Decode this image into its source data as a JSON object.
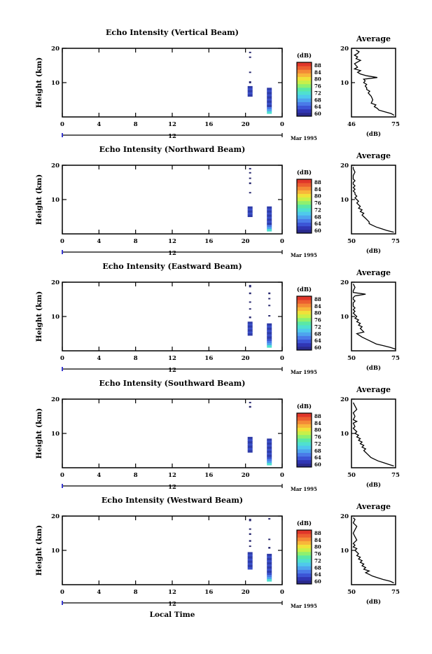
{
  "chart_data": [
    {
      "type": "heatmap",
      "title": "Echo Intensity (Vertical Beam)",
      "ylabel": "Height (km)",
      "x_ticks": [
        "0",
        "4",
        "8",
        "12",
        "16",
        "20",
        "0"
      ],
      "xlim": [
        0,
        24
      ],
      "ylim": [
        0,
        20
      ],
      "y_ticks": [
        "20",
        "10"
      ],
      "date_tick": "12",
      "date_label": "Mar 1995",
      "colorbar": {
        "unit": "(dB)",
        "ticks": [
          "88",
          "84",
          "80",
          "76",
          "72",
          "68",
          "64",
          "60"
        ],
        "range": [
          60,
          88
        ]
      },
      "echo_columns": [
        {
          "hour": 20.5,
          "segments": [
            [
              6,
              9
            ],
            [
              9.8,
              10.4
            ],
            [
              12.8,
              13.2
            ],
            [
              17.2,
              17.6
            ],
            [
              18.6,
              19.0
            ]
          ]
        },
        {
          "hour": 22.6,
          "segments": [
            [
              1,
              8.5
            ]
          ]
        }
      ],
      "average_profile": {
        "title": "Average",
        "xlabel": "(dB)",
        "x_ticks": [
          "46",
          "75"
        ],
        "xlim": [
          46,
          75
        ],
        "y_ticks": [
          "20",
          "10"
        ],
        "x": [
          74,
          72,
          68,
          64,
          63,
          61,
          62,
          59,
          60,
          59,
          58,
          57,
          58,
          56,
          56,
          55,
          56,
          54,
          55,
          54,
          63,
          56,
          52,
          50,
          52,
          48,
          50,
          49,
          48,
          50,
          52,
          49,
          50,
          48,
          50,
          51,
          49
        ],
        "y": [
          0.5,
          1,
          1.5,
          2,
          2.5,
          3,
          3.5,
          4,
          5,
          6,
          6.5,
          7,
          7.5,
          8,
          8.5,
          9,
          9.5,
          10,
          10.5,
          11,
          11.5,
          12,
          12.5,
          13,
          13.5,
          14,
          14.5,
          15,
          15.5,
          16,
          16.5,
          17,
          17.5,
          18,
          18.5,
          19,
          19.5
        ]
      }
    },
    {
      "type": "heatmap",
      "title": "Echo Intensity (Northward Beam)",
      "ylabel": "Height (km)",
      "x_ticks": [
        "0",
        "4",
        "8",
        "12",
        "16",
        "20",
        "0"
      ],
      "xlim": [
        0,
        24
      ],
      "ylim": [
        0,
        20
      ],
      "y_ticks": [
        "20",
        "10"
      ],
      "date_tick": "12",
      "date_label": "Mar 1995",
      "colorbar": {
        "unit": "(dB)",
        "ticks": [
          "88",
          "84",
          "80",
          "76",
          "72",
          "68",
          "64",
          "60"
        ],
        "range": [
          60,
          88
        ]
      },
      "echo_columns": [
        {
          "hour": 20.5,
          "segments": [
            [
              5,
              8
            ],
            [
              11.8,
              12.2
            ],
            [
              14.5,
              15
            ],
            [
              16,
              16.4
            ],
            [
              17.6,
              18
            ],
            [
              18.8,
              19.2
            ]
          ]
        },
        {
          "hour": 22.6,
          "segments": [
            [
              0.8,
              8
            ]
          ]
        }
      ],
      "average_profile": {
        "title": "Average",
        "xlabel": "(dB)",
        "x_ticks": [
          "50",
          "75"
        ],
        "xlim": [
          50,
          75
        ],
        "y_ticks": [
          "20",
          "10"
        ],
        "x": [
          74,
          70,
          67,
          64,
          62,
          60,
          60,
          59,
          58,
          57,
          56,
          57,
          55,
          56,
          54,
          55,
          54,
          53,
          54,
          53,
          52,
          53,
          52,
          52,
          51,
          52,
          51,
          52,
          51,
          51,
          52,
          51,
          51,
          52,
          51,
          51
        ],
        "y": [
          0.5,
          1,
          1.5,
          2,
          2.5,
          3,
          3.5,
          4,
          4.5,
          5,
          5.5,
          6,
          6.5,
          7,
          7.5,
          8,
          8.5,
          9,
          9.5,
          10,
          10.5,
          11,
          11.5,
          12,
          12.5,
          13,
          13.5,
          14,
          14.5,
          15,
          15.5,
          16,
          17,
          18,
          19,
          19.5
        ]
      }
    },
    {
      "type": "heatmap",
      "title": "Echo Intensity (Eastward Beam)",
      "ylabel": "Height (km)",
      "x_ticks": [
        "0",
        "4",
        "8",
        "12",
        "16",
        "20",
        "0"
      ],
      "xlim": [
        0,
        24
      ],
      "ylim": [
        0,
        20
      ],
      "y_ticks": [
        "20",
        "10"
      ],
      "date_tick": "12",
      "date_label": "Mar 1995",
      "colorbar": {
        "unit": "(dB)",
        "ticks": [
          "88",
          "84",
          "80",
          "76",
          "72",
          "68",
          "64",
          "60"
        ],
        "range": [
          60,
          88
        ]
      },
      "echo_columns": [
        {
          "hour": 20.5,
          "segments": [
            [
              4.5,
              8.5
            ],
            [
              9.5,
              10
            ],
            [
              12,
              12.4
            ],
            [
              14,
              14.4
            ],
            [
              16.5,
              17
            ],
            [
              18.5,
              19.2
            ]
          ]
        },
        {
          "hour": 22.6,
          "segments": [
            [
              1,
              8
            ],
            [
              10,
              10.4
            ],
            [
              13,
              13.4
            ],
            [
              15,
              15.4
            ],
            [
              16.5,
              17
            ]
          ]
        }
      ],
      "average_profile": {
        "title": "Average",
        "xlabel": "(dB)",
        "x_ticks": [
          "50",
          "75"
        ],
        "xlim": [
          50,
          75
        ],
        "y_ticks": [
          "20",
          "10"
        ],
        "x": [
          75,
          72,
          68,
          64,
          60,
          56,
          53,
          57,
          56,
          55,
          56,
          54,
          55,
          53,
          54,
          52,
          53,
          52,
          51,
          52,
          51,
          52,
          51,
          51,
          52,
          51,
          51,
          52,
          58,
          51,
          51,
          52,
          51
        ],
        "y": [
          0.5,
          1,
          1.5,
          2,
          3,
          4,
          5,
          5.5,
          6,
          6.5,
          7,
          7.5,
          8,
          8.5,
          9,
          9.5,
          10,
          10.5,
          11,
          11.5,
          12,
          12.5,
          13,
          14,
          14.5,
          15,
          15.5,
          16,
          16.5,
          17,
          17.5,
          18.5,
          19.5
        ]
      }
    },
    {
      "type": "heatmap",
      "title": "Echo Intensity (Southward Beam)",
      "ylabel": "Height (km)",
      "x_ticks": [
        "0",
        "4",
        "8",
        "12",
        "16",
        "20",
        "0"
      ],
      "xlim": [
        0,
        24
      ],
      "ylim": [
        0,
        20
      ],
      "y_ticks": [
        "20",
        "10"
      ],
      "date_tick": "12",
      "date_label": "Mar 1995",
      "colorbar": {
        "unit": "(dB)",
        "ticks": [
          "88",
          "84",
          "80",
          "76",
          "72",
          "68",
          "64",
          "60"
        ],
        "range": [
          60,
          88
        ]
      },
      "echo_columns": [
        {
          "hour": 20.5,
          "segments": [
            [
              4.5,
              9
            ],
            [
              17.5,
              18
            ],
            [
              18.8,
              19.2
            ]
          ]
        },
        {
          "hour": 22.6,
          "segments": [
            [
              0.8,
              8.5
            ]
          ]
        }
      ],
      "average_profile": {
        "title": "Average",
        "xlabel": "(dB)",
        "x_ticks": [
          "50",
          "75"
        ],
        "xlim": [
          50,
          75
        ],
        "y_ticks": [
          "20",
          "10"
        ],
        "x": [
          74,
          71,
          68,
          65,
          63,
          61,
          60,
          59,
          58,
          57,
          58,
          56,
          57,
          55,
          56,
          54,
          55,
          53,
          54,
          52,
          53,
          52,
          51,
          52,
          51,
          53,
          51,
          52,
          51,
          53,
          52,
          51
        ],
        "y": [
          0.5,
          1,
          1.5,
          2,
          2.5,
          3,
          3.5,
          4,
          4.5,
          5,
          5.5,
          6,
          6.5,
          7,
          7.5,
          8,
          8.5,
          9,
          9.5,
          10,
          10.5,
          11,
          11.5,
          12,
          13,
          13.5,
          14,
          15,
          16,
          17,
          18,
          19
        ]
      }
    },
    {
      "type": "heatmap",
      "title": "Echo Intensity (Westward Beam)",
      "ylabel": "Height (km)",
      "x_ticks": [
        "0",
        "4",
        "8",
        "12",
        "16",
        "20",
        "0"
      ],
      "xlim": [
        0,
        24
      ],
      "ylim": [
        0,
        20
      ],
      "y_ticks": [
        "20",
        "10"
      ],
      "date_tick": "12",
      "date_label": "Mar 1995",
      "xlabel": "Local Time",
      "colorbar": {
        "unit": "(dB)",
        "ticks": [
          "88",
          "84",
          "80",
          "76",
          "72",
          "68",
          "64",
          "60"
        ],
        "range": [
          60,
          88
        ]
      },
      "echo_columns": [
        {
          "hour": 20.5,
          "segments": [
            [
              4.5,
              9.5
            ],
            [
              11,
              11.4
            ],
            [
              12.5,
              13
            ],
            [
              14.5,
              15
            ],
            [
              16,
              16.4
            ],
            [
              18.5,
              19.2
            ]
          ]
        },
        {
          "hour": 22.6,
          "segments": [
            [
              1,
              9
            ],
            [
              10.5,
              11
            ],
            [
              13,
              13.4
            ],
            [
              19,
              19.4
            ]
          ]
        }
      ],
      "average_profile": {
        "title": "Average",
        "xlabel": "(dB)",
        "x_ticks": [
          "50",
          "75"
        ],
        "xlim": [
          50,
          75
        ],
        "y_ticks": [
          "20",
          "10"
        ],
        "x": [
          74,
          72,
          68,
          65,
          62,
          60,
          58,
          60,
          57,
          58,
          56,
          57,
          55,
          56,
          54,
          55,
          53,
          54,
          53,
          52,
          53,
          51,
          52,
          51,
          53,
          52,
          51,
          52,
          53,
          51,
          52,
          51
        ],
        "y": [
          0.5,
          1,
          1.5,
          2,
          2.5,
          3,
          3.5,
          4,
          4.5,
          5,
          5.5,
          6,
          6.5,
          7,
          7.5,
          8,
          8.5,
          9,
          9.5,
          10,
          10.5,
          11,
          11.5,
          12,
          13,
          14,
          15,
          16,
          17,
          18,
          19,
          19.5
        ]
      }
    }
  ]
}
